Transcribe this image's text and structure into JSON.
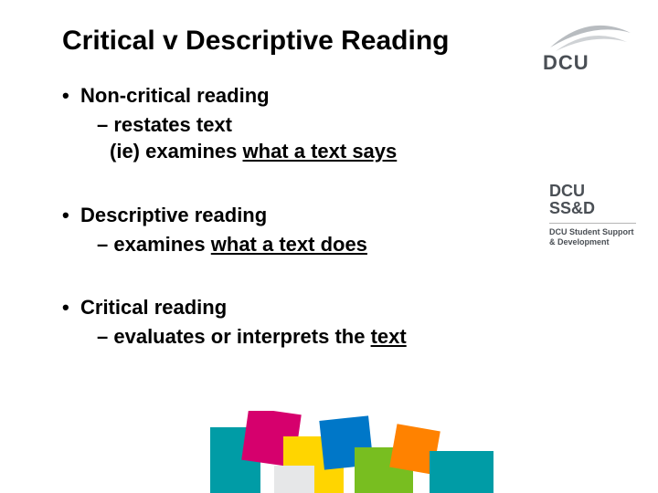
{
  "title": "Critical v Descriptive Reading",
  "groups": [
    {
      "bullet": "Non-critical reading",
      "lines": [
        {
          "indent": "sub",
          "prefix": "– ",
          "plain": "restates text",
          "underlined": ""
        },
        {
          "indent": "sub2",
          "prefix": "",
          "plain": "(ie) examines ",
          "underlined": "what a text says"
        }
      ]
    },
    {
      "bullet": "Descriptive reading",
      "lines": [
        {
          "indent": "sub",
          "prefix": "– ",
          "plain": "examines ",
          "underlined": "what a text does"
        }
      ]
    },
    {
      "bullet": "Critical reading",
      "lines": [
        {
          "indent": "sub",
          "prefix": "– ",
          "plain": "evaluates or interprets the ",
          "underlined": "text"
        }
      ]
    }
  ],
  "logo": {
    "text": "DCU",
    "swoosh_color": "#b8bcc0"
  },
  "ssd": {
    "line1": "DCU",
    "line2": "SS&D",
    "sub": "DCU Student Support & Development"
  },
  "shapes": {
    "colors": {
      "teal": "#009ca6",
      "magenta": "#d6006d",
      "yellow": "#ffd500",
      "blue": "#0077c8",
      "green": "#78be20",
      "orange": "#ff8200",
      "lightgrey": "#e6e7e8"
    }
  },
  "typography": {
    "title_fontsize": 30,
    "body_fontsize": 22,
    "font_family": "Arial",
    "text_color": "#000000",
    "background": "#ffffff"
  }
}
